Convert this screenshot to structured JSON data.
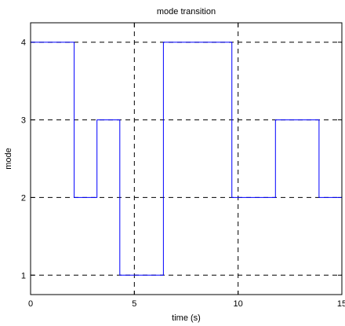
{
  "chart_data": {
    "type": "line",
    "title": "mode transition",
    "xlabel": "time (s)",
    "ylabel": "mode",
    "xlim": [
      0,
      15
    ],
    "ylim": [
      0.75,
      4.25
    ],
    "xticks": [
      0,
      5,
      10,
      15
    ],
    "yticks": [
      1,
      2,
      3,
      4
    ],
    "grid": true,
    "line_style": "step",
    "colors": {
      "series": "#0000ff",
      "grid": "#000000"
    },
    "series": [
      {
        "x": [
          0,
          2.1,
          2.1,
          3.2,
          3.2,
          4.3,
          4.3,
          6.4,
          6.4,
          9.7,
          9.7,
          11.8,
          11.8,
          13.9,
          13.9,
          15
        ],
        "y": [
          4,
          4,
          2,
          2,
          3,
          3,
          1,
          1,
          4,
          4,
          2,
          2,
          3,
          3,
          2,
          2
        ]
      }
    ]
  }
}
